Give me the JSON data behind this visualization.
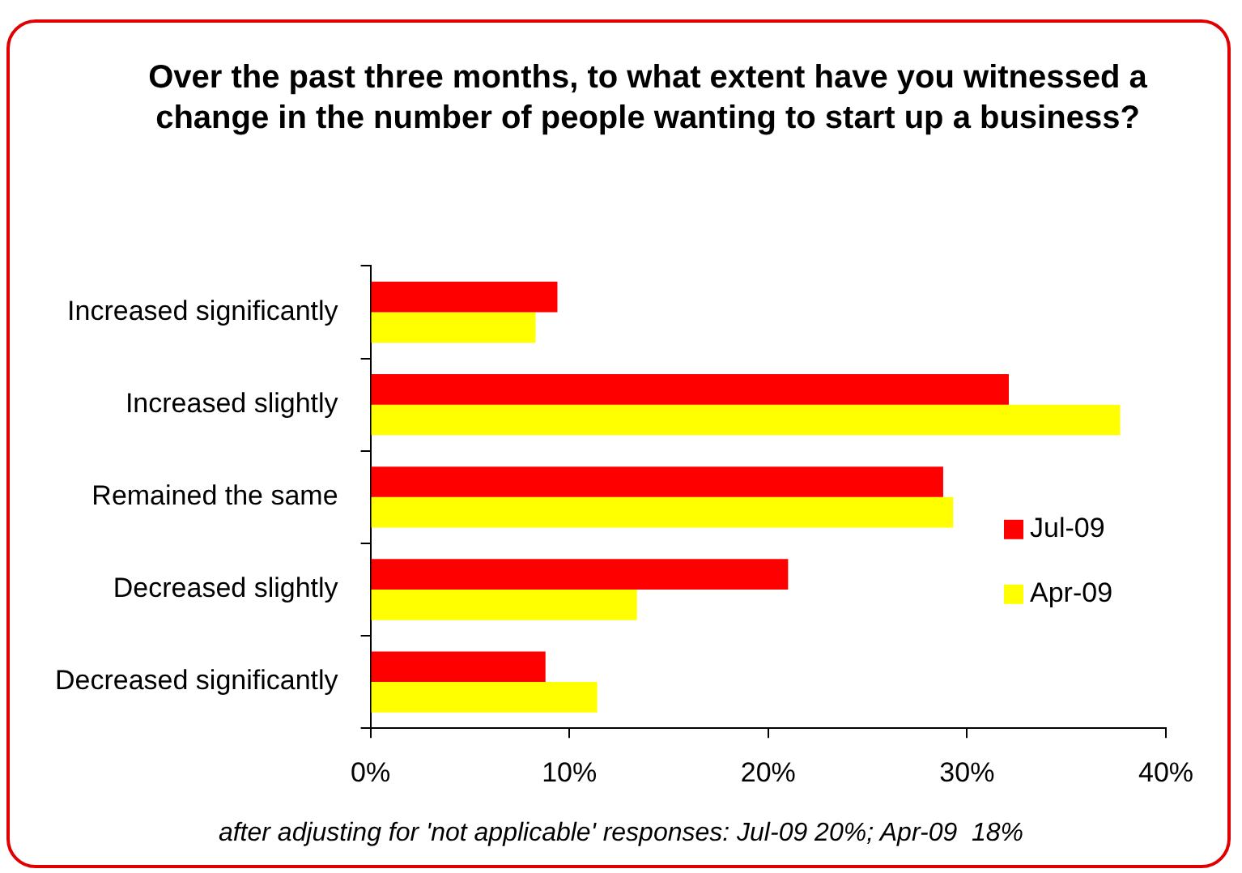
{
  "chart_data": {
    "type": "bar",
    "orientation": "horizontal",
    "title": "Over the past three months, to what extent have you witnessed a change in the number of people wanting to start up a business?",
    "categories": [
      "Increased significantly",
      "Increased slightly",
      "Remained the same",
      "Decreased slightly",
      "Decreased significantly"
    ],
    "series": [
      {
        "name": "Jul-09",
        "color": "#ff0000",
        "values": [
          9.4,
          32.1,
          28.8,
          21.0,
          8.8
        ]
      },
      {
        "name": "Apr-09",
        "color": "#ffff00",
        "values": [
          8.3,
          37.7,
          29.3,
          13.4,
          11.4
        ]
      }
    ],
    "xlim": [
      0,
      40
    ],
    "xticks": [
      {
        "value": 0,
        "label": "0%"
      },
      {
        "value": 10,
        "label": "10%"
      },
      {
        "value": 20,
        "label": "20%"
      },
      {
        "value": 30,
        "label": "30%"
      },
      {
        "value": 40,
        "label": "40%"
      }
    ],
    "grid": false,
    "legend": "right",
    "annotations": [
      "after adjusting for 'not applicable' responses: Jul-09 20%; Apr-09  18%"
    ]
  }
}
